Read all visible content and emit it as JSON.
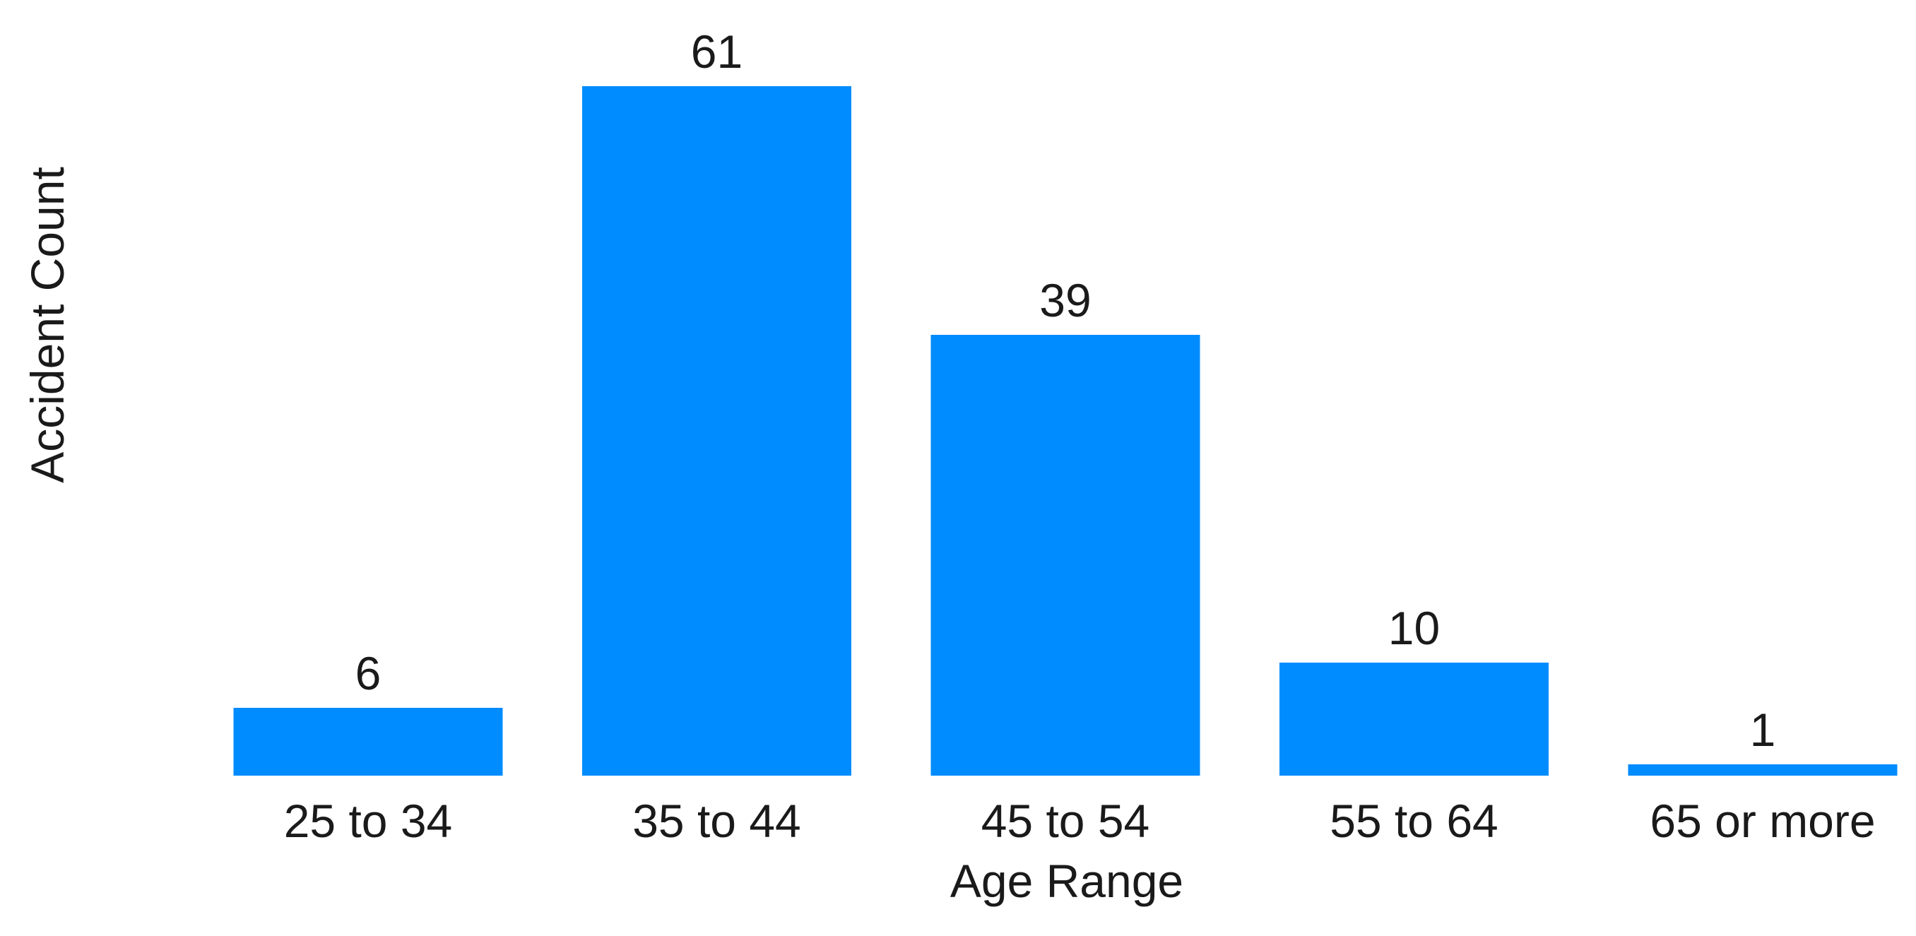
{
  "chart_data": {
    "type": "bar",
    "title": "",
    "xlabel": "Age Range",
    "ylabel": "Accident Count",
    "categories": [
      "25 to 34",
      "35 to 44",
      "45 to 54",
      "55 to 64",
      "65 or more"
    ],
    "values": [
      6,
      61,
      39,
      10,
      1
    ],
    "data_labels": [
      "6",
      "61",
      "39",
      "10",
      "1"
    ],
    "ylim": [
      0,
      61
    ],
    "grid": false,
    "legend": "none",
    "bar_color": "#008cff",
    "text_color": "#1a1a1a"
  }
}
